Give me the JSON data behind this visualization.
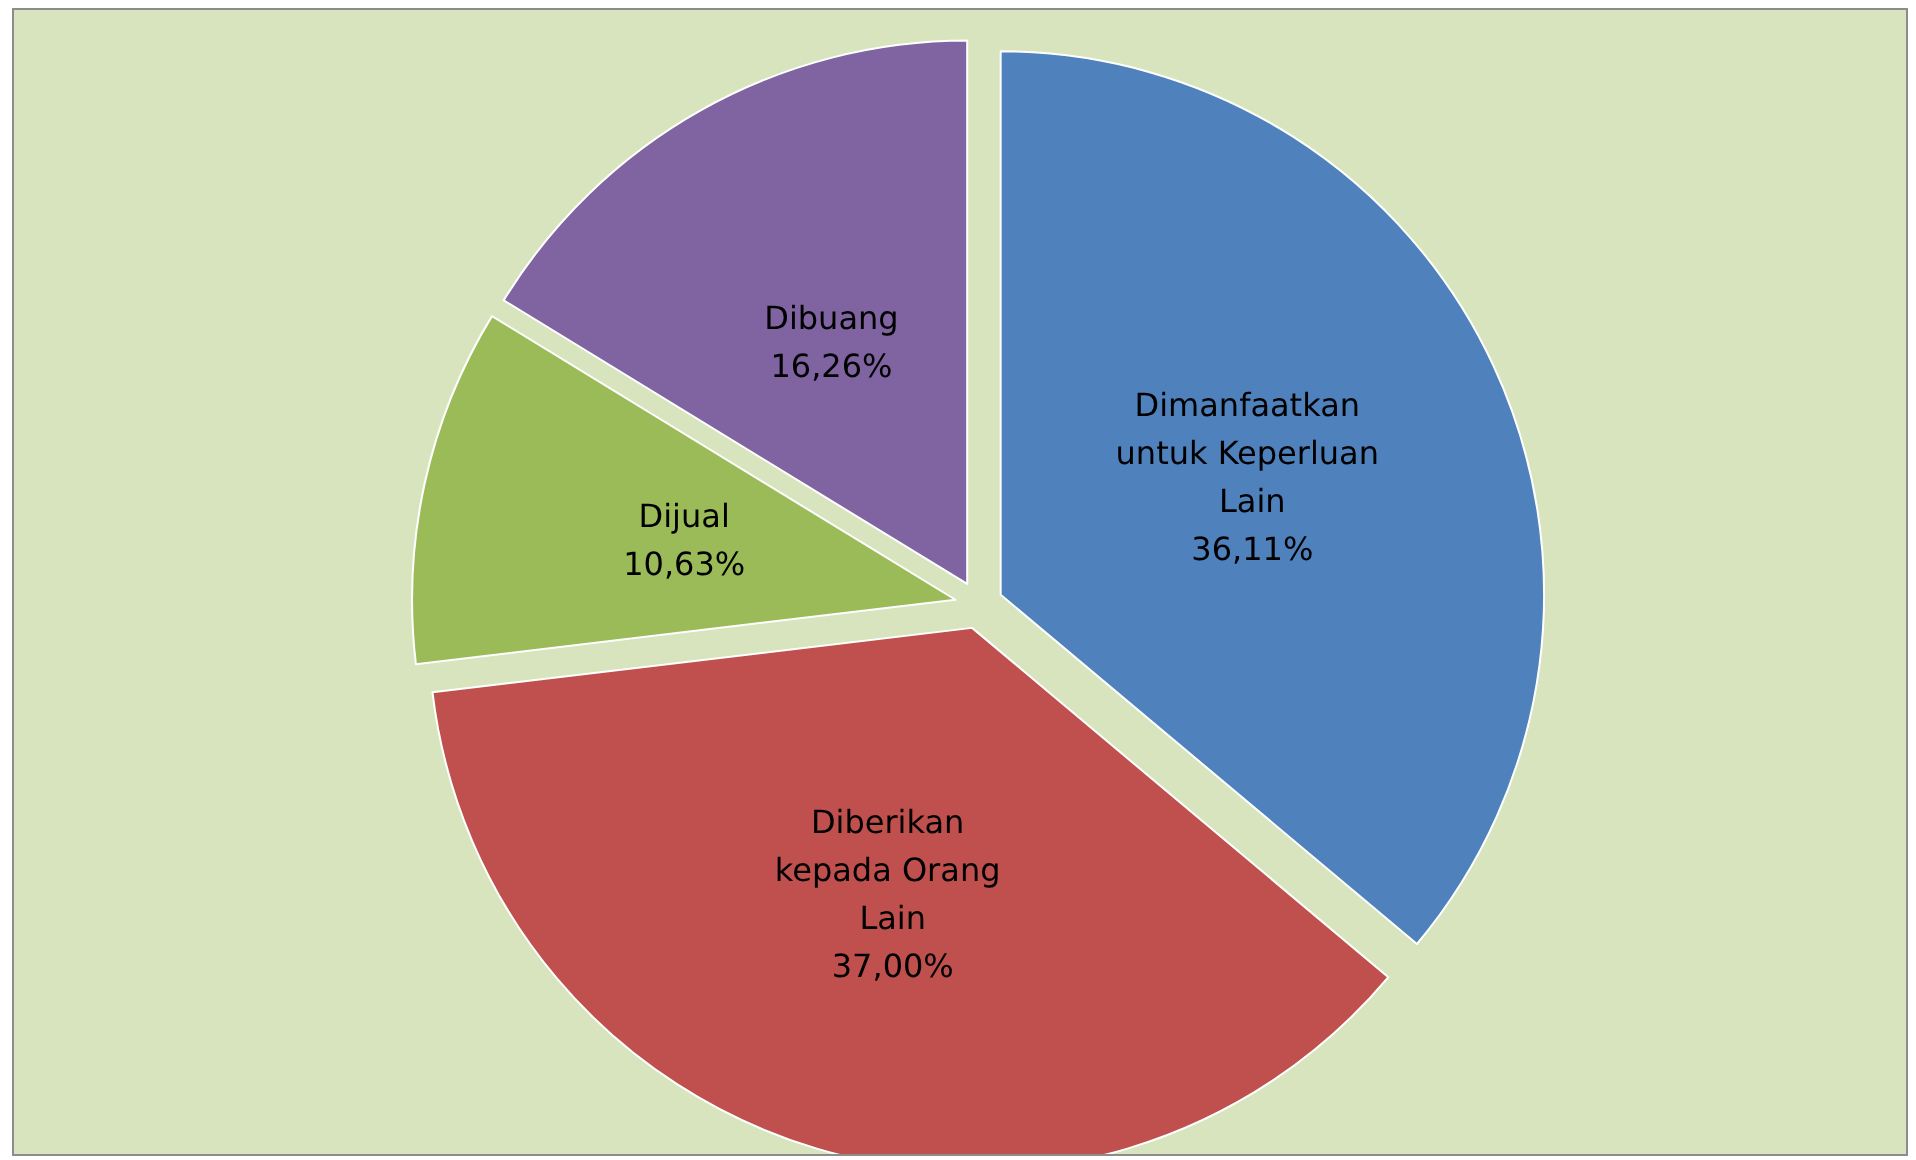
{
  "chart_data": {
    "type": "pie",
    "categories": [
      "Dimanfaatkan untuk Keperluan Lain",
      "Diberikan kepada Orang Lain",
      "Dijual",
      "Dibuang"
    ],
    "values": [
      36.11,
      37.0,
      10.63,
      16.26
    ],
    "colors": [
      "#4f81bd",
      "#c0504d",
      "#9bbb59",
      "#8064a2"
    ],
    "value_labels": [
      "36,11%",
      "37,00%",
      "10,63%",
      "16,26%"
    ],
    "legend": false
  }
}
